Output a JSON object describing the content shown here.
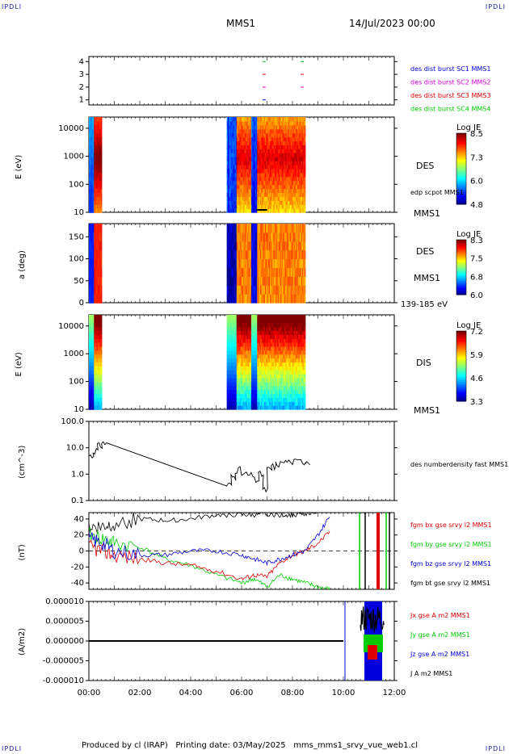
{
  "corners": {
    "tl": "IPDLI",
    "tr": "IPDLI",
    "bl": "IPDLI",
    "br": "IPDLI"
  },
  "header": {
    "mission": "MMS1",
    "date": "14/Jul/2023 00:00"
  },
  "footer": "Produced by cl (IRAP)   Printing date: 03/May/2025   mms_mms1_srvy_vue_web1.cl",
  "colors": {
    "red": "#dd0000",
    "green": "#00cc00",
    "blue": "#0000dd",
    "black": "#000000",
    "magenta": "#dd00dd"
  },
  "chart_data": [
    {
      "type": "scatter",
      "panel": "burst-availability",
      "yticks": [
        "1",
        "2",
        "3",
        "4"
      ],
      "ylim": [
        0.6,
        4.4
      ],
      "series": [
        {
          "name": "des dist burst SC1 MMS1",
          "color": "#0000dd",
          "y": 1,
          "x": [
            "06:53"
          ]
        },
        {
          "name": "des dist burst SC2 MMS2",
          "color": "#dd00dd",
          "y": 2,
          "x": [
            "06:53",
            "08:23"
          ]
        },
        {
          "name": "des dist burst SC3 MMS3",
          "color": "#dd0000",
          "y": 3,
          "x": [
            "06:53",
            "08:23"
          ]
        },
        {
          "name": "des dist burst SC4 MMS4",
          "color": "#00cc00",
          "y": 4,
          "x": [
            "06:53",
            "08:23"
          ]
        }
      ]
    },
    {
      "type": "heatmap",
      "panel": "des-energy",
      "ylabel": "E (eV)",
      "yticks": [
        "10",
        "100",
        "1000",
        "10000"
      ],
      "scale": "log",
      "label": "DES",
      "sublabel": "MMS1",
      "overlay": "edp scpot MMS1",
      "colorbar": {
        "title": "Log JE",
        "ticks": [
          "8.5",
          "7.3",
          "6.0",
          "4.8"
        ]
      },
      "segments": [
        {
          "start": "00:00",
          "end": "00:30"
        },
        {
          "start": "05:25",
          "end": "08:30"
        }
      ]
    },
    {
      "type": "heatmap",
      "panel": "des-pitch",
      "ylabel": "a (deg)",
      "yticks": [
        "0",
        "50",
        "100",
        "150"
      ],
      "label": "DES",
      "sublabel": "MMS1",
      "energy_range": "139-185 eV",
      "colorbar": {
        "title": "Log JE",
        "ticks": [
          "8.3",
          "7.5",
          "6.8",
          "6.0"
        ]
      },
      "segments": [
        {
          "start": "00:00",
          "end": "00:30"
        },
        {
          "start": "05:25",
          "end": "08:30"
        }
      ]
    },
    {
      "type": "heatmap",
      "panel": "dis-energy",
      "ylabel": "E (eV)",
      "yticks": [
        "10",
        "100",
        "1000",
        "10000"
      ],
      "scale": "log",
      "label": "DIS",
      "sublabel": "MMS1",
      "colorbar": {
        "title": "Log JE",
        "ticks": [
          "7.2",
          "5.9",
          "4.6",
          "3.3"
        ]
      },
      "segments": [
        {
          "start": "00:00",
          "end": "00:30"
        },
        {
          "start": "05:25",
          "end": "08:30"
        }
      ]
    },
    {
      "type": "line",
      "panel": "density",
      "ylabel": "(cm^-3)",
      "yticks": [
        "0.1",
        "1.0",
        "10.0",
        "100.0"
      ],
      "scale": "log",
      "series": [
        {
          "name": "des numberdensity fast MMS1",
          "color": "#000000"
        }
      ],
      "x": [
        "00:00",
        "00:10",
        "00:20",
        "00:30",
        "05:25",
        "05:35",
        "05:45",
        "06:00",
        "06:15",
        "06:30",
        "06:40",
        "06:50",
        "07:00",
        "07:10",
        "07:20",
        "07:40",
        "08:00",
        "08:20",
        "08:30"
      ],
      "y": [
        5,
        8,
        12,
        15,
        0.4,
        0.8,
        1.5,
        1.0,
        0.9,
        0.6,
        1.0,
        0.25,
        1.5,
        2.0,
        2.5,
        3.0,
        3.0,
        3.1,
        3.2
      ]
    },
    {
      "type": "line",
      "panel": "fgm",
      "ylabel": "(nT)",
      "yticks": [
        "-40",
        "-20",
        "0",
        "20",
        "40"
      ],
      "ylim": [
        -48,
        48
      ],
      "series": [
        {
          "name": "fgm bx gse srvy l2 MMS1",
          "color": "#dd0000"
        },
        {
          "name": "fgm by gse srvy l2 MMS1",
          "color": "#00cc00"
        },
        {
          "name": "fgm bz gse srvy l2 MMS1",
          "color": "#0000dd"
        },
        {
          "name": "fgm bt gse srvy l2 MMS1",
          "color": "#000000"
        }
      ],
      "x": [
        "00:00",
        "00:30",
        "01:00",
        "02:00",
        "03:00",
        "04:00",
        "05:00",
        "06:00",
        "06:30",
        "07:00",
        "07:30",
        "08:00",
        "08:30",
        "09:00",
        "09:30"
      ],
      "bx": [
        5,
        0,
        -5,
        -10,
        -15,
        -18,
        -25,
        -35,
        -30,
        -32,
        -15,
        -5,
        0,
        10,
        25
      ],
      "by": [
        20,
        15,
        10,
        5,
        -10,
        -18,
        -30,
        -40,
        -35,
        -45,
        -30,
        -35,
        -40,
        -45,
        -48
      ],
      "bz": [
        15,
        10,
        0,
        -5,
        -5,
        0,
        0,
        -5,
        -10,
        -15,
        -10,
        -5,
        0,
        20,
        45
      ],
      "bt": [
        30,
        30,
        35,
        40,
        38,
        40,
        45,
        45,
        45,
        46,
        45,
        45,
        47,
        50,
        55
      ]
    },
    {
      "type": "line",
      "panel": "current",
      "ylabel": "(A/m2)",
      "yticks": [
        "-0.000010",
        "-0.000005",
        "0.000000",
        "0.000005",
        "0.000010"
      ],
      "ylim": [
        -1e-05,
        1e-05
      ],
      "series": [
        {
          "name": "Jx gse A m2 MMS1",
          "color": "#dd0000"
        },
        {
          "name": "Jy gse A m2 MMS1",
          "color": "#00cc00"
        },
        {
          "name": "Jz gse A m2 MMS1",
          "color": "#0000dd"
        },
        {
          "name": "J A m2 MMS1",
          "color": "#000000"
        }
      ]
    }
  ],
  "x_axis": {
    "ticks": [
      "00:00",
      "02:00",
      "04:00",
      "06:00",
      "08:00",
      "10:00",
      "12:00"
    ]
  }
}
